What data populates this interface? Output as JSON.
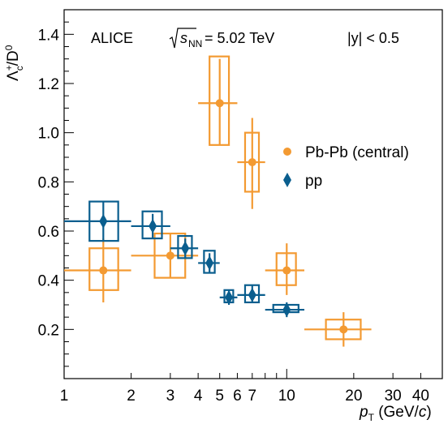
{
  "header": {
    "experiment": "ALICE",
    "energy_sqrt": "s",
    "energy_sub": "NN",
    "energy_value": " = 5.02 TeV",
    "rapidity": "|y| < 0.5"
  },
  "axes": {
    "y_main": "Λ",
    "y_sup": "+",
    "y_sub": "c",
    "y_rest": "/D",
    "y_sup2": "0",
    "x_main": "p",
    "x_sub": "T",
    "x_rest": " (GeV/",
    "x_c": "c",
    "x_close": ")"
  },
  "legend": [
    {
      "label": "Pb-Pb (central)",
      "color": "#f39a32",
      "marker": "circle"
    },
    {
      "label": "pp",
      "color": "#0a5e8e",
      "marker": "diamond"
    }
  ],
  "chart_data": {
    "type": "scatter",
    "x_scale": "log",
    "xlim": [
      1,
      50
    ],
    "ylim": [
      0,
      1.5
    ],
    "x_ticks": [
      {
        "value": 1,
        "label": "1"
      },
      {
        "value": 2,
        "label": "2"
      },
      {
        "value": 3,
        "label": "3"
      },
      {
        "value": 4,
        "label": "4"
      },
      {
        "value": 5,
        "label": "5"
      },
      {
        "value": 6,
        "label": "6"
      },
      {
        "value": 7,
        "label": "7"
      },
      {
        "value": 10,
        "label": "10"
      },
      {
        "value": 20,
        "label": "20"
      },
      {
        "value": 30,
        "label": "30"
      },
      {
        "value": 40,
        "label": "40"
      }
    ],
    "y_ticks": [
      {
        "value": 0.2,
        "label": "0.2"
      },
      {
        "value": 0.4,
        "label": "0.4"
      },
      {
        "value": 0.6,
        "label": "0.6"
      },
      {
        "value": 0.8,
        "label": "0.8"
      },
      {
        "value": 1.0,
        "label": "1.0"
      },
      {
        "value": 1.2,
        "label": "1.2"
      },
      {
        "value": 1.4,
        "label": "1.4"
      }
    ],
    "legend_position": "right",
    "grid": false,
    "series": [
      {
        "name": "Pb-Pb (central)",
        "color": "#f39a32",
        "marker": "circle",
        "points": [
          {
            "x": 1.5,
            "xlo": 1.0,
            "xhi": 2.0,
            "y": 0.44,
            "stat_lo": 0.31,
            "stat_hi": 0.57,
            "sys_lo": 0.36,
            "sys_hi": 0.53,
            "box_lo": 1.3,
            "box_hi": 1.75
          },
          {
            "x": 3.0,
            "xlo": 2.0,
            "xhi": 4.0,
            "y": 0.5,
            "stat_lo": 0.41,
            "stat_hi": 0.59,
            "sys_lo": 0.41,
            "sys_hi": 0.59,
            "box_lo": 2.55,
            "box_hi": 3.5
          },
          {
            "x": 5.0,
            "xlo": 4.0,
            "xhi": 6.0,
            "y": 1.12,
            "stat_lo": 0.95,
            "stat_hi": 1.3,
            "sys_lo": 0.95,
            "sys_hi": 1.31,
            "box_lo": 4.5,
            "box_hi": 5.5
          },
          {
            "x": 7.0,
            "xlo": 6.0,
            "xhi": 8.0,
            "y": 0.88,
            "stat_lo": 0.69,
            "stat_hi": 1.06,
            "sys_lo": 0.76,
            "sys_hi": 1.0,
            "box_lo": 6.5,
            "box_hi": 7.5
          },
          {
            "x": 10.0,
            "xlo": 8.0,
            "xhi": 12.0,
            "y": 0.44,
            "stat_lo": 0.34,
            "stat_hi": 0.55,
            "sys_lo": 0.38,
            "sys_hi": 0.51,
            "box_lo": 9.0,
            "box_hi": 11.0
          },
          {
            "x": 18.0,
            "xlo": 12.0,
            "xhi": 24.0,
            "y": 0.2,
            "stat_lo": 0.13,
            "stat_hi": 0.27,
            "sys_lo": 0.16,
            "sys_hi": 0.24,
            "box_lo": 15.0,
            "box_hi": 21.5
          }
        ]
      },
      {
        "name": "pp",
        "color": "#0a5e8e",
        "marker": "diamond",
        "points": [
          {
            "x": 1.5,
            "xlo": 1.0,
            "xhi": 2.0,
            "y": 0.64,
            "stat_lo": 0.56,
            "stat_hi": 0.72,
            "sys_lo": 0.56,
            "sys_hi": 0.72,
            "box_lo": 1.3,
            "box_hi": 1.75
          },
          {
            "x": 2.5,
            "xlo": 2.0,
            "xhi": 3.0,
            "y": 0.62,
            "stat_lo": 0.57,
            "stat_hi": 0.67,
            "sys_lo": 0.57,
            "sys_hi": 0.68,
            "box_lo": 2.25,
            "box_hi": 2.75
          },
          {
            "x": 3.5,
            "xlo": 3.0,
            "xhi": 4.0,
            "y": 0.53,
            "stat_lo": 0.49,
            "stat_hi": 0.57,
            "sys_lo": 0.49,
            "sys_hi": 0.58,
            "box_lo": 3.25,
            "box_hi": 3.75
          },
          {
            "x": 4.5,
            "xlo": 4.0,
            "xhi": 5.0,
            "y": 0.47,
            "stat_lo": 0.43,
            "stat_hi": 0.51,
            "sys_lo": 0.43,
            "sys_hi": 0.52,
            "box_lo": 4.25,
            "box_hi": 4.75
          },
          {
            "x": 5.5,
            "xlo": 5.0,
            "xhi": 6.0,
            "y": 0.33,
            "stat_lo": 0.3,
            "stat_hi": 0.36,
            "sys_lo": 0.31,
            "sys_hi": 0.36,
            "box_lo": 5.25,
            "box_hi": 5.75
          },
          {
            "x": 7.0,
            "xlo": 6.0,
            "xhi": 8.0,
            "y": 0.34,
            "stat_lo": 0.31,
            "stat_hi": 0.38,
            "sys_lo": 0.31,
            "sys_hi": 0.38,
            "box_lo": 6.5,
            "box_hi": 7.5
          },
          {
            "x": 10.0,
            "xlo": 8.0,
            "xhi": 12.0,
            "y": 0.28,
            "stat_lo": 0.25,
            "stat_hi": 0.31,
            "sys_lo": 0.27,
            "sys_hi": 0.3,
            "box_lo": 8.7,
            "box_hi": 11.3
          }
        ]
      }
    ]
  }
}
